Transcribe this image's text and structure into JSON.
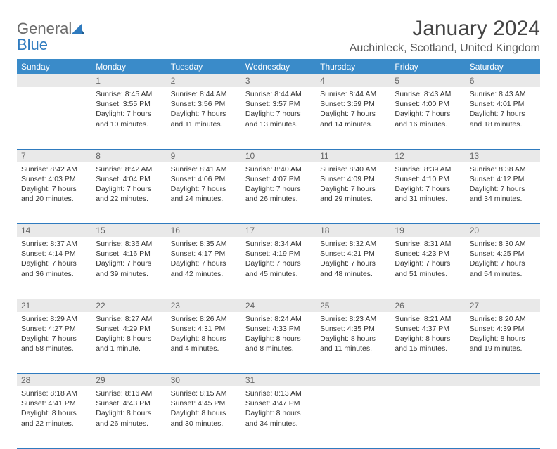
{
  "logo": {
    "textGray": "General",
    "textBlue": "Blue"
  },
  "title": "January 2024",
  "location": "Auchinleck, Scotland, United Kingdom",
  "colors": {
    "headerBg": "#3a8bc9",
    "headerText": "#ffffff",
    "dayNumBg": "#e9e9e9",
    "borderColor": "#2f7bbf",
    "logoGray": "#6b6b6b",
    "logoBlue": "#2f7bbf"
  },
  "dayHeaders": [
    "Sunday",
    "Monday",
    "Tuesday",
    "Wednesday",
    "Thursday",
    "Friday",
    "Saturday"
  ],
  "weeks": [
    [
      null,
      {
        "n": "1",
        "sr": "Sunrise: 8:45 AM",
        "ss": "Sunset: 3:55 PM",
        "dl": "Daylight: 7 hours and 10 minutes."
      },
      {
        "n": "2",
        "sr": "Sunrise: 8:44 AM",
        "ss": "Sunset: 3:56 PM",
        "dl": "Daylight: 7 hours and 11 minutes."
      },
      {
        "n": "3",
        "sr": "Sunrise: 8:44 AM",
        "ss": "Sunset: 3:57 PM",
        "dl": "Daylight: 7 hours and 13 minutes."
      },
      {
        "n": "4",
        "sr": "Sunrise: 8:44 AM",
        "ss": "Sunset: 3:59 PM",
        "dl": "Daylight: 7 hours and 14 minutes."
      },
      {
        "n": "5",
        "sr": "Sunrise: 8:43 AM",
        "ss": "Sunset: 4:00 PM",
        "dl": "Daylight: 7 hours and 16 minutes."
      },
      {
        "n": "6",
        "sr": "Sunrise: 8:43 AM",
        "ss": "Sunset: 4:01 PM",
        "dl": "Daylight: 7 hours and 18 minutes."
      }
    ],
    [
      {
        "n": "7",
        "sr": "Sunrise: 8:42 AM",
        "ss": "Sunset: 4:03 PM",
        "dl": "Daylight: 7 hours and 20 minutes."
      },
      {
        "n": "8",
        "sr": "Sunrise: 8:42 AM",
        "ss": "Sunset: 4:04 PM",
        "dl": "Daylight: 7 hours and 22 minutes."
      },
      {
        "n": "9",
        "sr": "Sunrise: 8:41 AM",
        "ss": "Sunset: 4:06 PM",
        "dl": "Daylight: 7 hours and 24 minutes."
      },
      {
        "n": "10",
        "sr": "Sunrise: 8:40 AM",
        "ss": "Sunset: 4:07 PM",
        "dl": "Daylight: 7 hours and 26 minutes."
      },
      {
        "n": "11",
        "sr": "Sunrise: 8:40 AM",
        "ss": "Sunset: 4:09 PM",
        "dl": "Daylight: 7 hours and 29 minutes."
      },
      {
        "n": "12",
        "sr": "Sunrise: 8:39 AM",
        "ss": "Sunset: 4:10 PM",
        "dl": "Daylight: 7 hours and 31 minutes."
      },
      {
        "n": "13",
        "sr": "Sunrise: 8:38 AM",
        "ss": "Sunset: 4:12 PM",
        "dl": "Daylight: 7 hours and 34 minutes."
      }
    ],
    [
      {
        "n": "14",
        "sr": "Sunrise: 8:37 AM",
        "ss": "Sunset: 4:14 PM",
        "dl": "Daylight: 7 hours and 36 minutes."
      },
      {
        "n": "15",
        "sr": "Sunrise: 8:36 AM",
        "ss": "Sunset: 4:16 PM",
        "dl": "Daylight: 7 hours and 39 minutes."
      },
      {
        "n": "16",
        "sr": "Sunrise: 8:35 AM",
        "ss": "Sunset: 4:17 PM",
        "dl": "Daylight: 7 hours and 42 minutes."
      },
      {
        "n": "17",
        "sr": "Sunrise: 8:34 AM",
        "ss": "Sunset: 4:19 PM",
        "dl": "Daylight: 7 hours and 45 minutes."
      },
      {
        "n": "18",
        "sr": "Sunrise: 8:32 AM",
        "ss": "Sunset: 4:21 PM",
        "dl": "Daylight: 7 hours and 48 minutes."
      },
      {
        "n": "19",
        "sr": "Sunrise: 8:31 AM",
        "ss": "Sunset: 4:23 PM",
        "dl": "Daylight: 7 hours and 51 minutes."
      },
      {
        "n": "20",
        "sr": "Sunrise: 8:30 AM",
        "ss": "Sunset: 4:25 PM",
        "dl": "Daylight: 7 hours and 54 minutes."
      }
    ],
    [
      {
        "n": "21",
        "sr": "Sunrise: 8:29 AM",
        "ss": "Sunset: 4:27 PM",
        "dl": "Daylight: 7 hours and 58 minutes."
      },
      {
        "n": "22",
        "sr": "Sunrise: 8:27 AM",
        "ss": "Sunset: 4:29 PM",
        "dl": "Daylight: 8 hours and 1 minute."
      },
      {
        "n": "23",
        "sr": "Sunrise: 8:26 AM",
        "ss": "Sunset: 4:31 PM",
        "dl": "Daylight: 8 hours and 4 minutes."
      },
      {
        "n": "24",
        "sr": "Sunrise: 8:24 AM",
        "ss": "Sunset: 4:33 PM",
        "dl": "Daylight: 8 hours and 8 minutes."
      },
      {
        "n": "25",
        "sr": "Sunrise: 8:23 AM",
        "ss": "Sunset: 4:35 PM",
        "dl": "Daylight: 8 hours and 11 minutes."
      },
      {
        "n": "26",
        "sr": "Sunrise: 8:21 AM",
        "ss": "Sunset: 4:37 PM",
        "dl": "Daylight: 8 hours and 15 minutes."
      },
      {
        "n": "27",
        "sr": "Sunrise: 8:20 AM",
        "ss": "Sunset: 4:39 PM",
        "dl": "Daylight: 8 hours and 19 minutes."
      }
    ],
    [
      {
        "n": "28",
        "sr": "Sunrise: 8:18 AM",
        "ss": "Sunset: 4:41 PM",
        "dl": "Daylight: 8 hours and 22 minutes."
      },
      {
        "n": "29",
        "sr": "Sunrise: 8:16 AM",
        "ss": "Sunset: 4:43 PM",
        "dl": "Daylight: 8 hours and 26 minutes."
      },
      {
        "n": "30",
        "sr": "Sunrise: 8:15 AM",
        "ss": "Sunset: 4:45 PM",
        "dl": "Daylight: 8 hours and 30 minutes."
      },
      {
        "n": "31",
        "sr": "Sunrise: 8:13 AM",
        "ss": "Sunset: 4:47 PM",
        "dl": "Daylight: 8 hours and 34 minutes."
      },
      null,
      null,
      null
    ]
  ]
}
